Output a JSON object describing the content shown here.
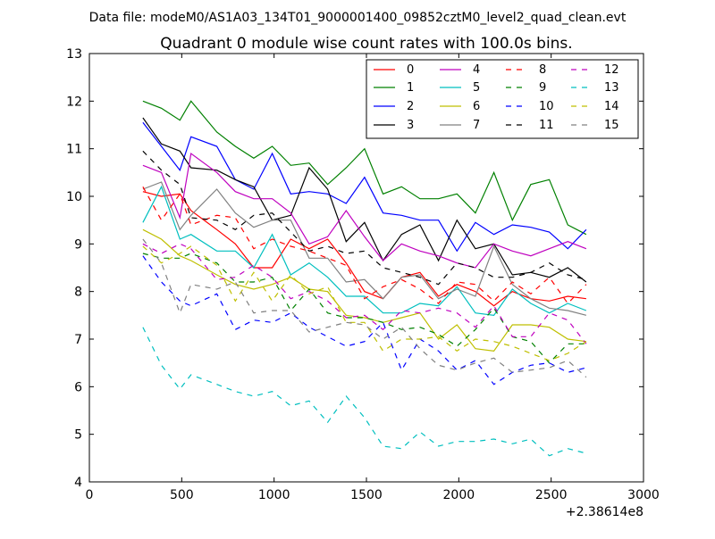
{
  "chart_data": {
    "type": "line",
    "suptitle": "Data file: modeM0/AS1A03_134T01_9000001400_09852cztM0_level2_quad_clean.evt",
    "title": "Quadrant 0 module wise count rates with 100.0s bins.",
    "xlabel": "",
    "ylabel": "",
    "x_offset_label": "+2.38614e8",
    "xlim": [
      0,
      3000
    ],
    "ylim": [
      4,
      13
    ],
    "xticks": [
      0,
      500,
      1000,
      1500,
      2000,
      2500,
      3000
    ],
    "yticks": [
      4,
      5,
      6,
      7,
      8,
      9,
      10,
      11,
      12,
      13
    ],
    "grid": false,
    "legend_position": "top-right",
    "legend_columns": 4,
    "x": [
      290,
      390,
      490,
      550,
      690,
      790,
      890,
      990,
      1090,
      1190,
      1290,
      1390,
      1490,
      1590,
      1690,
      1790,
      1890,
      1990,
      2090,
      2190,
      2290,
      2390,
      2490,
      2590,
      2690
    ],
    "series": [
      {
        "name": "0",
        "color": "#ff0000",
        "dash": "solid",
        "values": [
          10.1,
          10.0,
          10.05,
          9.7,
          9.3,
          9.0,
          8.5,
          8.5,
          9.1,
          8.9,
          9.1,
          8.6,
          8.0,
          7.85,
          8.3,
          8.4,
          7.9,
          8.15,
          8.0,
          7.7,
          8.0,
          7.85,
          7.8,
          7.9,
          7.85
        ]
      },
      {
        "name": "1",
        "color": "#008000",
        "dash": "solid",
        "values": [
          12.0,
          11.85,
          11.6,
          12.0,
          11.35,
          11.05,
          10.8,
          11.05,
          10.65,
          10.7,
          10.25,
          10.6,
          11.0,
          10.05,
          10.2,
          9.95,
          9.95,
          10.05,
          9.65,
          10.5,
          9.5,
          10.25,
          10.35,
          9.4,
          9.2
        ]
      },
      {
        "name": "2",
        "color": "#0000ff",
        "dash": "solid",
        "values": [
          11.55,
          11.05,
          10.55,
          11.25,
          11.05,
          10.35,
          10.15,
          10.9,
          10.05,
          10.1,
          10.05,
          9.85,
          10.4,
          9.65,
          9.6,
          9.5,
          9.5,
          8.85,
          9.45,
          9.2,
          9.4,
          9.35,
          9.25,
          8.9,
          9.3
        ]
      },
      {
        "name": "3",
        "color": "#000000",
        "dash": "solid",
        "values": [
          11.65,
          11.1,
          10.95,
          10.6,
          10.55,
          10.35,
          10.2,
          9.5,
          9.6,
          10.6,
          10.15,
          9.05,
          9.45,
          8.65,
          9.2,
          9.4,
          8.65,
          9.5,
          8.9,
          9.0,
          8.35,
          8.4,
          8.3,
          8.5,
          8.2
        ]
      },
      {
        "name": "4",
        "color": "#bf00bf",
        "dash": "solid",
        "values": [
          10.65,
          10.5,
          9.55,
          10.9,
          10.5,
          10.1,
          9.95,
          9.95,
          9.65,
          9.0,
          9.15,
          9.7,
          9.15,
          8.65,
          9.0,
          8.85,
          8.75,
          8.6,
          8.5,
          9.0,
          8.85,
          8.75,
          8.9,
          9.05,
          8.9
        ]
      },
      {
        "name": "5",
        "color": "#00bfbf",
        "dash": "solid",
        "values": [
          9.45,
          10.2,
          9.1,
          9.2,
          8.85,
          8.85,
          8.5,
          9.2,
          8.35,
          8.6,
          8.3,
          7.9,
          7.9,
          7.55,
          7.55,
          7.75,
          7.7,
          8.1,
          7.55,
          7.5,
          8.05,
          7.75,
          7.55,
          7.75,
          7.6
        ]
      },
      {
        "name": "6",
        "color": "#bfbf00",
        "dash": "solid",
        "values": [
          9.3,
          9.1,
          8.75,
          8.65,
          8.35,
          8.15,
          8.05,
          8.15,
          8.3,
          8.05,
          8.0,
          7.5,
          7.45,
          7.35,
          7.45,
          7.55,
          7.0,
          7.3,
          6.8,
          6.75,
          7.3,
          7.3,
          7.25,
          7.0,
          6.95
        ]
      },
      {
        "name": "7",
        "color": "#808080",
        "dash": "solid",
        "values": [
          10.15,
          10.3,
          9.3,
          9.6,
          10.15,
          9.65,
          9.35,
          9.5,
          9.5,
          8.7,
          8.7,
          8.2,
          8.25,
          7.85,
          8.3,
          8.35,
          7.85,
          8.05,
          7.9,
          8.95,
          8.15,
          7.85,
          7.65,
          7.6,
          7.5
        ]
      },
      {
        "name": "8",
        "color": "#ff0000",
        "dash": "dashed",
        "values": [
          10.2,
          9.5,
          10.05,
          9.4,
          9.6,
          9.55,
          8.9,
          9.1,
          8.95,
          8.85,
          8.7,
          8.55,
          7.85,
          8.1,
          8.25,
          8.05,
          7.75,
          8.2,
          8.15,
          7.8,
          8.2,
          7.95,
          8.3,
          7.75,
          8.15
        ]
      },
      {
        "name": "9",
        "color": "#008000",
        "dash": "dashed",
        "values": [
          8.8,
          8.7,
          8.7,
          8.8,
          8.6,
          8.2,
          8.2,
          8.3,
          7.6,
          8.05,
          7.55,
          7.45,
          7.45,
          7.35,
          7.2,
          7.25,
          7.1,
          6.85,
          7.2,
          7.65,
          7.05,
          6.95,
          6.5,
          6.9,
          6.9
        ]
      },
      {
        "name": "10",
        "color": "#0000ff",
        "dash": "dashed",
        "values": [
          8.75,
          8.2,
          7.8,
          7.7,
          7.95,
          7.2,
          7.4,
          7.35,
          7.55,
          7.25,
          7.05,
          6.85,
          6.95,
          7.35,
          6.35,
          7.0,
          6.75,
          6.35,
          6.55,
          6.05,
          6.3,
          6.45,
          6.5,
          6.3,
          6.4
        ]
      },
      {
        "name": "11",
        "color": "#000000",
        "dash": "dashed",
        "values": [
          10.95,
          10.55,
          10.25,
          9.55,
          9.5,
          9.3,
          9.6,
          9.65,
          9.25,
          8.85,
          8.95,
          8.8,
          8.85,
          8.5,
          8.4,
          8.3,
          8.15,
          8.6,
          8.5,
          8.3,
          8.3,
          8.4,
          8.6,
          8.35,
          8.25
        ]
      },
      {
        "name": "12",
        "color": "#bf00bf",
        "dash": "dashed",
        "values": [
          9.0,
          8.8,
          9.0,
          8.9,
          8.25,
          8.3,
          8.55,
          8.3,
          7.85,
          8.0,
          7.8,
          7.45,
          7.5,
          7.2,
          7.6,
          7.55,
          7.65,
          7.55,
          7.25,
          7.7,
          7.05,
          7.05,
          7.55,
          7.4,
          6.9
        ]
      },
      {
        "name": "13",
        "color": "#00bfbf",
        "dash": "dashed",
        "values": [
          7.25,
          6.45,
          5.95,
          6.25,
          6.05,
          5.9,
          5.8,
          5.9,
          5.6,
          5.7,
          5.25,
          5.8,
          5.35,
          4.75,
          4.7,
          5.05,
          4.75,
          4.85,
          4.85,
          4.9,
          4.8,
          4.9,
          4.55,
          4.7,
          4.6
        ]
      },
      {
        "name": "14",
        "color": "#bfbf00",
        "dash": "dashed",
        "values": [
          8.95,
          8.6,
          8.8,
          8.95,
          8.55,
          7.8,
          8.4,
          7.8,
          8.35,
          7.95,
          8.1,
          7.35,
          7.35,
          6.75,
          7.0,
          7.0,
          7.05,
          6.75,
          7.0,
          6.95,
          6.85,
          6.7,
          6.55,
          6.7,
          6.95
        ]
      },
      {
        "name": "15",
        "color": "#808080",
        "dash": "dashed",
        "values": [
          9.1,
          8.6,
          7.55,
          8.15,
          8.05,
          8.2,
          7.55,
          7.6,
          7.6,
          7.15,
          7.25,
          7.35,
          7.3,
          7.0,
          7.25,
          6.8,
          6.45,
          6.35,
          6.5,
          6.6,
          6.3,
          6.35,
          6.4,
          6.55,
          6.2
        ]
      }
    ]
  }
}
